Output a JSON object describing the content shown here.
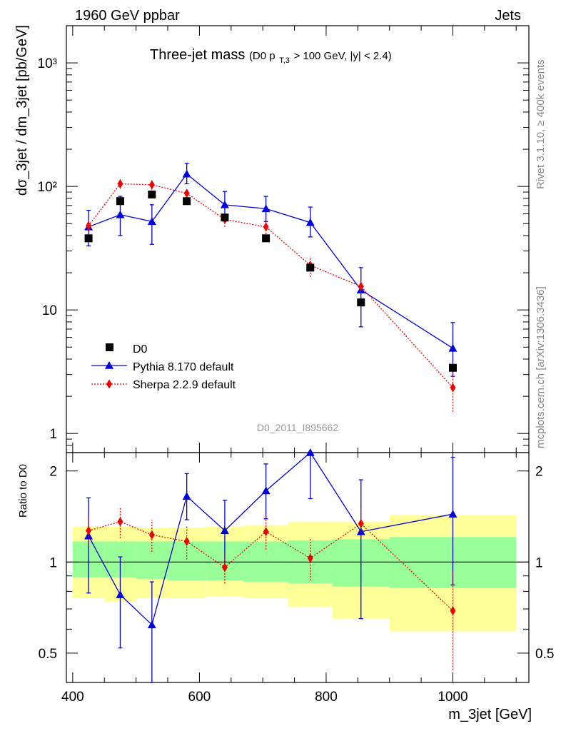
{
  "header": {
    "left": "1960 GeV ppbar",
    "right": "Jets",
    "side_top": "Rivet 3.1.10, ≥ 400k events",
    "side_bottom": "mcplots.cern.ch [arXiv:1306.3436]"
  },
  "chart_data": {
    "type": "line",
    "title_main": "Three-jet mass",
    "title_sub_1": "(D0 p",
    "title_sub_sub": "T,3",
    "title_sub_2": " > 100 GeV, |y| < 2.4)",
    "watermark": "D0_2011_I895662",
    "xlabel": "m_3jet [GeV]",
    "ylabel": "dσ_3jet / dm_3jet [pb/GeV]",
    "ratio_ylabel": "Ratio to D0",
    "xlim": [
      390,
      1120
    ],
    "ylim": [
      0.7,
      2000
    ],
    "ylog": true,
    "ratio_ylim": [
      0.4,
      2.3
    ],
    "ratio_log": true,
    "x_ticks": [
      "400",
      "600",
      "800",
      "1000"
    ],
    "y_ticks": [
      "1",
      "10",
      "10²",
      "10³"
    ],
    "ratio_ticks": [
      "0.5",
      "1",
      "2"
    ],
    "legend": [
      "D0",
      "Pythia 8.170 default",
      "Sherpa 2.2.9 default"
    ],
    "bins": [
      {
        "lo": 400,
        "hi": 450,
        "green": [
          0.89,
          1.17
        ],
        "yellow": [
          0.76,
          1.31
        ]
      },
      {
        "lo": 450,
        "hi": 500,
        "green": [
          0.89,
          1.17
        ],
        "yellow": [
          0.74,
          1.31
        ]
      },
      {
        "lo": 500,
        "hi": 550,
        "green": [
          0.88,
          1.17
        ],
        "yellow": [
          0.76,
          1.3
        ]
      },
      {
        "lo": 550,
        "hi": 610,
        "green": [
          0.87,
          1.17
        ],
        "yellow": [
          0.76,
          1.3
        ]
      },
      {
        "lo": 610,
        "hi": 670,
        "green": [
          0.87,
          1.17
        ],
        "yellow": [
          0.77,
          1.31
        ]
      },
      {
        "lo": 670,
        "hi": 740,
        "green": [
          0.86,
          1.17
        ],
        "yellow": [
          0.76,
          1.32
        ]
      },
      {
        "lo": 740,
        "hi": 810,
        "green": [
          0.85,
          1.18
        ],
        "yellow": [
          0.71,
          1.36
        ]
      },
      {
        "lo": 810,
        "hi": 900,
        "green": [
          0.83,
          1.19
        ],
        "yellow": [
          0.65,
          1.36
        ]
      },
      {
        "lo": 900,
        "hi": 1100,
        "green": [
          0.82,
          1.21
        ],
        "yellow": [
          0.59,
          1.43
        ]
      }
    ],
    "series": [
      {
        "name": "D0",
        "color": "#000000",
        "x": [
          425,
          475,
          525,
          580,
          640,
          705,
          775,
          855,
          1000
        ],
        "y": [
          38,
          76,
          86,
          76,
          56,
          38,
          22,
          11.5,
          3.4
        ]
      },
      {
        "name": "Pythia 8.170 default",
        "color": "#0000dd",
        "x": [
          425,
          475,
          525,
          580,
          640,
          705,
          775,
          855,
          1000
        ],
        "y": [
          47,
          59,
          52,
          126,
          71,
          66,
          51,
          14.5,
          4.9
        ],
        "yerr_lo": [
          33,
          40,
          34,
          105,
          56,
          52,
          39,
          7.3,
          2.9
        ],
        "yerr_hi": [
          64,
          83,
          71,
          154,
          91,
          83,
          68,
          22,
          7.9
        ],
        "ratio": [
          1.22,
          0.78,
          0.62,
          1.65,
          1.27,
          1.72,
          2.3,
          1.26,
          1.44
        ],
        "ratio_lo": [
          0.79,
          0.52,
          0.33,
          1.38,
          0.96,
          1.39,
          1.62,
          0.65,
          0.84
        ],
        "ratio_hi": [
          1.63,
          1.04,
          0.86,
          1.96,
          1.6,
          2.11,
          2.3,
          1.87,
          2.22
        ]
      },
      {
        "name": "Sherpa 2.2.9 default",
        "color": "#ee0000",
        "x": [
          425,
          475,
          525,
          580,
          640,
          705,
          775,
          855,
          1000
        ],
        "y": [
          48,
          105,
          103,
          88,
          54,
          47,
          23,
          15.5,
          2.35
        ],
        "yerr_lo": [
          42,
          96,
          94,
          79,
          47,
          41,
          18.5,
          14,
          1.5
        ],
        "yerr_hi": [
          54,
          114,
          112,
          97,
          61,
          53,
          27,
          17.5,
          3.1
        ],
        "ratio": [
          1.27,
          1.36,
          1.23,
          1.17,
          0.96,
          1.26,
          1.03,
          1.34,
          0.69
        ],
        "ratio_lo": [
          1.13,
          1.2,
          1.08,
          1.02,
          0.85,
          1.1,
          0.87,
          1.22,
          0.44
        ],
        "ratio_hi": [
          1.41,
          1.52,
          1.38,
          1.32,
          1.07,
          1.42,
          1.2,
          1.5,
          0.94
        ]
      }
    ]
  }
}
